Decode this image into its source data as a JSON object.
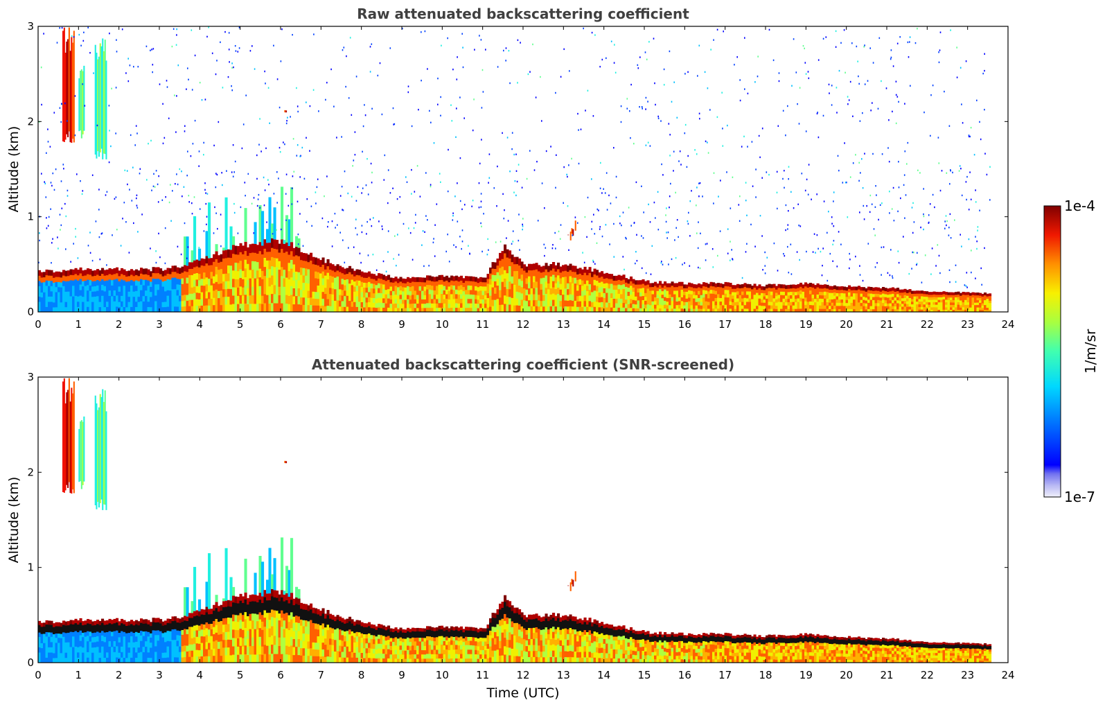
{
  "chart_data": [
    {
      "type": "heatmap",
      "title": "Raw attenuated backscattering coefficient",
      "xlabel": "",
      "ylabel": "Altitude (km)",
      "xlim": [
        0,
        24
      ],
      "ylim": [
        0,
        3
      ],
      "xticks": [
        "0",
        "1",
        "2",
        "3",
        "4",
        "5",
        "6",
        "7",
        "8",
        "9",
        "10",
        "11",
        "12",
        "13",
        "14",
        "15",
        "16",
        "17",
        "18",
        "19",
        "20",
        "21",
        "22",
        "23",
        "24"
      ],
      "yticks": [
        "0",
        "1",
        "2",
        "3"
      ],
      "data_end_time": 23.55,
      "noise_top_km": 3.0,
      "noise_density": 0.35,
      "features": {
        "boundary_layer_top_km": [
          {
            "t": 0,
            "h": 0.42
          },
          {
            "t": 1,
            "h": 0.45
          },
          {
            "t": 2,
            "h": 0.45
          },
          {
            "t": 3,
            "h": 0.45
          },
          {
            "t": 3.5,
            "h": 0.48
          },
          {
            "t": 4,
            "h": 0.55
          },
          {
            "t": 5,
            "h": 0.7
          },
          {
            "t": 6,
            "h": 0.75
          },
          {
            "t": 6.5,
            "h": 0.65
          },
          {
            "t": 7,
            "h": 0.55
          },
          {
            "t": 8,
            "h": 0.42
          },
          {
            "t": 9,
            "h": 0.35
          },
          {
            "t": 10,
            "h": 0.38
          },
          {
            "t": 11,
            "h": 0.35
          },
          {
            "t": 11.5,
            "h": 0.7
          },
          {
            "t": 12,
            "h": 0.5
          },
          {
            "t": 13,
            "h": 0.5
          },
          {
            "t": 14,
            "h": 0.42
          },
          {
            "t": 15,
            "h": 0.32
          },
          {
            "t": 16,
            "h": 0.3
          },
          {
            "t": 17,
            "h": 0.3
          },
          {
            "t": 18,
            "h": 0.28
          },
          {
            "t": 19,
            "h": 0.3
          },
          {
            "t": 20,
            "h": 0.27
          },
          {
            "t": 21,
            "h": 0.25
          },
          {
            "t": 22,
            "h": 0.22
          },
          {
            "t": 23,
            "h": 0.2
          },
          {
            "t": 23.55,
            "h": 0.2
          }
        ],
        "cloud_columns": [
          {
            "t0": 0.6,
            "t1": 0.9,
            "h0": 1.75,
            "h1": 3.0,
            "value": "high"
          },
          {
            "t0": 1.0,
            "t1": 1.15,
            "h0": 1.8,
            "h1": 2.6,
            "value": "mid"
          },
          {
            "t0": 1.4,
            "t1": 1.7,
            "h0": 1.6,
            "h1": 2.9,
            "value": "mid"
          },
          {
            "t0": 6.0,
            "t1": 6.15,
            "h0": 2.0,
            "h1": 2.2,
            "value": "high"
          },
          {
            "t0": 13.1,
            "t1": 13.3,
            "h0": 0.75,
            "h1": 1.0,
            "value": "high"
          }
        ]
      }
    },
    {
      "type": "heatmap",
      "title": "Attenuated backscattering coefficient (SNR-screened)",
      "xlabel": "Time (UTC)",
      "ylabel": "Altitude (km)",
      "xlim": [
        0,
        24
      ],
      "ylim": [
        0,
        3
      ],
      "xticks": [
        "0",
        "1",
        "2",
        "3",
        "4",
        "5",
        "6",
        "7",
        "8",
        "9",
        "10",
        "11",
        "12",
        "13",
        "14",
        "15",
        "16",
        "17",
        "18",
        "19",
        "20",
        "21",
        "22",
        "23",
        "24"
      ],
      "yticks": [
        "0",
        "1",
        "2",
        "3"
      ],
      "data_end_time": 23.55,
      "noise_density": 0,
      "features": {
        "screened": true
      }
    }
  ],
  "colorbar": {
    "label": "1/m/sr",
    "max_label": "1e-4",
    "min_label": "1e-7",
    "colormap": "jet",
    "colors": [
      "#e8e8f8",
      "#b0b0f0",
      "#7070f0",
      "#0000ff",
      "#0040ff",
      "#0080ff",
      "#00c0ff",
      "#20f0e0",
      "#60ff90",
      "#b0ff40",
      "#f0f000",
      "#ffb000",
      "#ff6000",
      "#f01000",
      "#b00000",
      "#800000"
    ]
  }
}
